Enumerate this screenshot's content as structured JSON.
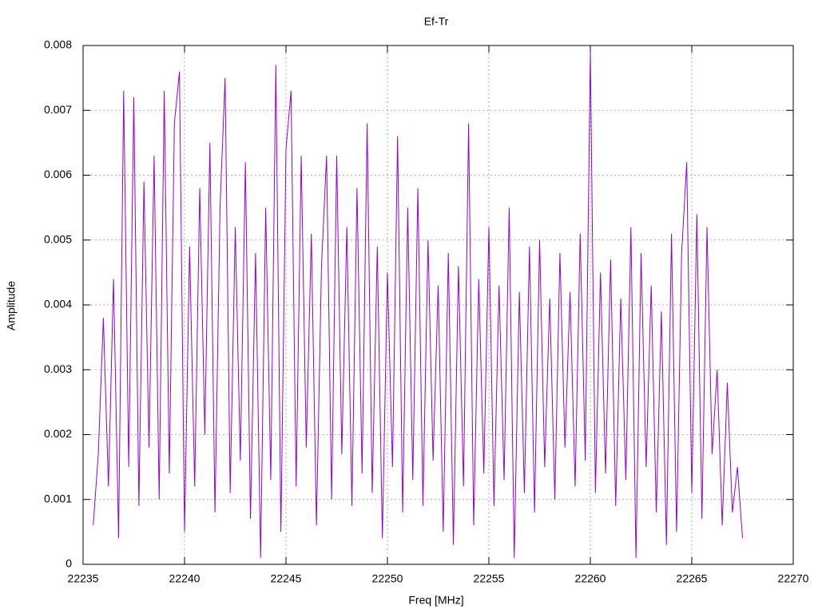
{
  "chart_data": {
    "type": "line",
    "title": "Ef-Tr",
    "xlabel": "Freq [MHz]",
    "ylabel": "Amplitude",
    "xlim": [
      22235,
      22270
    ],
    "xticks": [
      22235,
      22240,
      22245,
      22250,
      22255,
      22260,
      22265,
      22270
    ],
    "ylim": [
      0,
      0.008
    ],
    "yticks": [
      0,
      0.001,
      0.002,
      0.003,
      0.004,
      0.005,
      0.006,
      0.007,
      0.008
    ],
    "grid": true,
    "x": [
      22235.5,
      22235.75,
      22236,
      22236.25,
      22236.5,
      22236.75,
      22237,
      22237.25,
      22237.5,
      22237.75,
      22238,
      22238.25,
      22238.5,
      22238.75,
      22239,
      22239.25,
      22239.5,
      22239.75,
      22240,
      22240.25,
      22240.5,
      22240.75,
      22241,
      22241.25,
      22241.5,
      22241.75,
      22242,
      22242.25,
      22242.5,
      22242.75,
      22243,
      22243.25,
      22243.5,
      22243.75,
      22244,
      22244.25,
      22244.5,
      22244.75,
      22245,
      22245.25,
      22245.5,
      22245.75,
      22246,
      22246.25,
      22246.5,
      22246.75,
      22247,
      22247.25,
      22247.5,
      22247.75,
      22248,
      22248.25,
      22248.5,
      22248.75,
      22249,
      22249.25,
      22249.5,
      22249.75,
      22250,
      22250.25,
      22250.5,
      22250.75,
      22251,
      22251.25,
      22251.5,
      22251.75,
      22252,
      22252.25,
      22252.5,
      22252.75,
      22253,
      22253.25,
      22253.5,
      22253.75,
      22254,
      22254.25,
      22254.5,
      22254.75,
      22255,
      22255.25,
      22255.5,
      22255.75,
      22256,
      22256.25,
      22256.5,
      22256.75,
      22257,
      22257.25,
      22257.5,
      22257.75,
      22258,
      22258.25,
      22258.5,
      22258.75,
      22259,
      22259.25,
      22259.5,
      22259.75,
      22260,
      22260.25,
      22260.5,
      22260.75,
      22261,
      22261.25,
      22261.5,
      22261.75,
      22262,
      22262.25,
      22262.5,
      22262.75,
      22263,
      22263.25,
      22263.5,
      22263.75,
      22264,
      22264.25,
      22264.5,
      22264.75,
      22265,
      22265.25,
      22265.5,
      22265.75,
      22266,
      22266.25,
      22266.5,
      22266.75,
      22267,
      22267.25,
      22267.5
    ],
    "series": [
      {
        "color": "#9400d3",
        "values": [
          0.0006,
          0.0017,
          0.0038,
          0.0012,
          0.0044,
          0.0004,
          0.0073,
          0.0015,
          0.0072,
          0.0009,
          0.0059,
          0.0018,
          0.0063,
          0.001,
          0.0073,
          0.0014,
          0.0068,
          0.0076,
          0.0005,
          0.0049,
          0.0012,
          0.0058,
          0.002,
          0.0065,
          0.0008,
          0.0055,
          0.0075,
          0.0011,
          0.0052,
          0.0016,
          0.0062,
          0.0007,
          0.0048,
          0.0001,
          0.0055,
          0.0013,
          0.0077,
          0.0005,
          0.0064,
          0.0073,
          0.0012,
          0.0063,
          0.0018,
          0.0051,
          0.0006,
          0.0046,
          0.0063,
          0.001,
          0.0063,
          0.0017,
          0.0052,
          0.0009,
          0.0058,
          0.0014,
          0.0068,
          0.0011,
          0.0049,
          0.0004,
          0.0045,
          0.0015,
          0.0066,
          0.0008,
          0.0055,
          0.0013,
          0.0058,
          0.0009,
          0.005,
          0.0016,
          0.0043,
          0.0005,
          0.0048,
          0.0003,
          0.0046,
          0.0012,
          0.0068,
          0.0006,
          0.0044,
          0.0014,
          0.0052,
          0.0009,
          0.0043,
          0.0013,
          0.0055,
          0.0001,
          0.0042,
          0.0011,
          0.0049,
          0.0008,
          0.005,
          0.0015,
          0.0041,
          0.001,
          0.0048,
          0.0018,
          0.0042,
          0.0012,
          0.0051,
          0.0016,
          0.0079,
          0.0011,
          0.0045,
          0.0014,
          0.0047,
          0.0009,
          0.0041,
          0.0013,
          0.0052,
          0.0001,
          0.0048,
          0.0015,
          0.0043,
          0.0008,
          0.0039,
          0.0003,
          0.0051,
          0.0005,
          0.0048,
          0.0062,
          0.0011,
          0.0054,
          0.0007,
          0.0052,
          0.0017,
          0.003,
          0.0006,
          0.0028,
          0.0008,
          0.0015,
          0.0004
        ]
      }
    ]
  }
}
